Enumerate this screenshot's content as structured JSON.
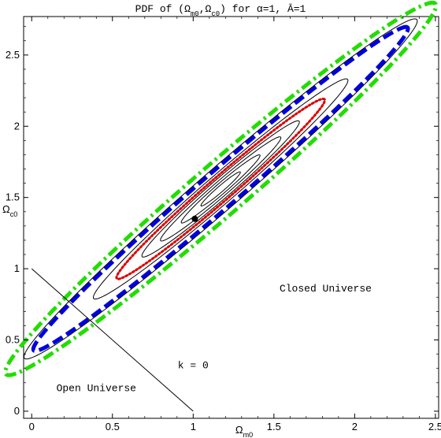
{
  "chart_data": {
    "type": "contour",
    "title": "PDF of (Ω_m0, Ω_c0) for α=1, Ā=1",
    "title_parts": {
      "prefix": "PDF of (",
      "omega": "Ω",
      "m0": "m0",
      "sep": ",",
      "c0": "c0",
      "suffix": ") for α=1, Ā=1"
    },
    "xlabel": {
      "base": "Ω",
      "sub": "m0"
    },
    "ylabel": {
      "base": "Ω",
      "sub": "c0"
    },
    "xlim": [
      -0.05,
      2.52
    ],
    "ylim": [
      -0.05,
      2.77
    ],
    "xticks": [
      0,
      0.5,
      1,
      1.5,
      2,
      2.5
    ],
    "xtick_labels": [
      "0",
      "0.5",
      "1",
      "1.5",
      "2",
      "2.5"
    ],
    "yticks": [
      0,
      0.5,
      1,
      1.5,
      2,
      2.5
    ],
    "ytick_labels": [
      "0",
      "0.5",
      "1",
      "1.5",
      "2",
      "2.5"
    ],
    "grid": false,
    "best_fit": {
      "x": 1.01,
      "y": 1.35
    },
    "ellipse_center": {
      "x": 1.17,
      "y": 1.56
    },
    "major_axis_slope": 0.98,
    "contours": [
      {
        "level": "inner-1",
        "style": "thin",
        "color": "#000000",
        "half_major": 0.17,
        "half_minor": 0.02
      },
      {
        "level": "inner-2",
        "style": "thin",
        "color": "#000000",
        "half_major": 0.34,
        "half_minor": 0.035
      },
      {
        "level": "inner-3",
        "style": "thin",
        "color": "#000000",
        "half_major": 0.52,
        "half_minor": 0.05
      },
      {
        "level": "inner-4",
        "style": "thin",
        "color": "#000000",
        "half_major": 0.68,
        "half_minor": 0.065
      },
      {
        "level": "1-sigma",
        "style": "dotted",
        "color": "#dd0000",
        "half_major": 0.9,
        "half_minor": 0.078
      },
      {
        "level": "outer-thin",
        "style": "thin",
        "color": "#000000",
        "half_major": 1.1,
        "half_minor": 0.095
      },
      {
        "level": "2-sigma",
        "style": "dashed",
        "color": "#0000dd",
        "half_major": 1.62,
        "half_minor": 0.12
      },
      {
        "level": "outer-thin-2",
        "style": "thin",
        "color": "#000000",
        "half_major": 1.7,
        "half_minor": 0.135
      },
      {
        "level": "3-sigma",
        "style": "dashdot",
        "color": "#22dd00",
        "half_major": 1.86,
        "half_minor": 0.17
      }
    ],
    "flat_line": {
      "x": [
        0,
        1
      ],
      "y": [
        1,
        0
      ],
      "label": "k = 0"
    },
    "annotations": [
      {
        "text": "Closed Universe",
        "x": 1.82,
        "y": 0.84
      },
      {
        "text": "Open Universe",
        "x": 0.4,
        "y": 0.14
      },
      {
        "text": "k = 0",
        "x": 1.0,
        "y": 0.3
      }
    ]
  }
}
